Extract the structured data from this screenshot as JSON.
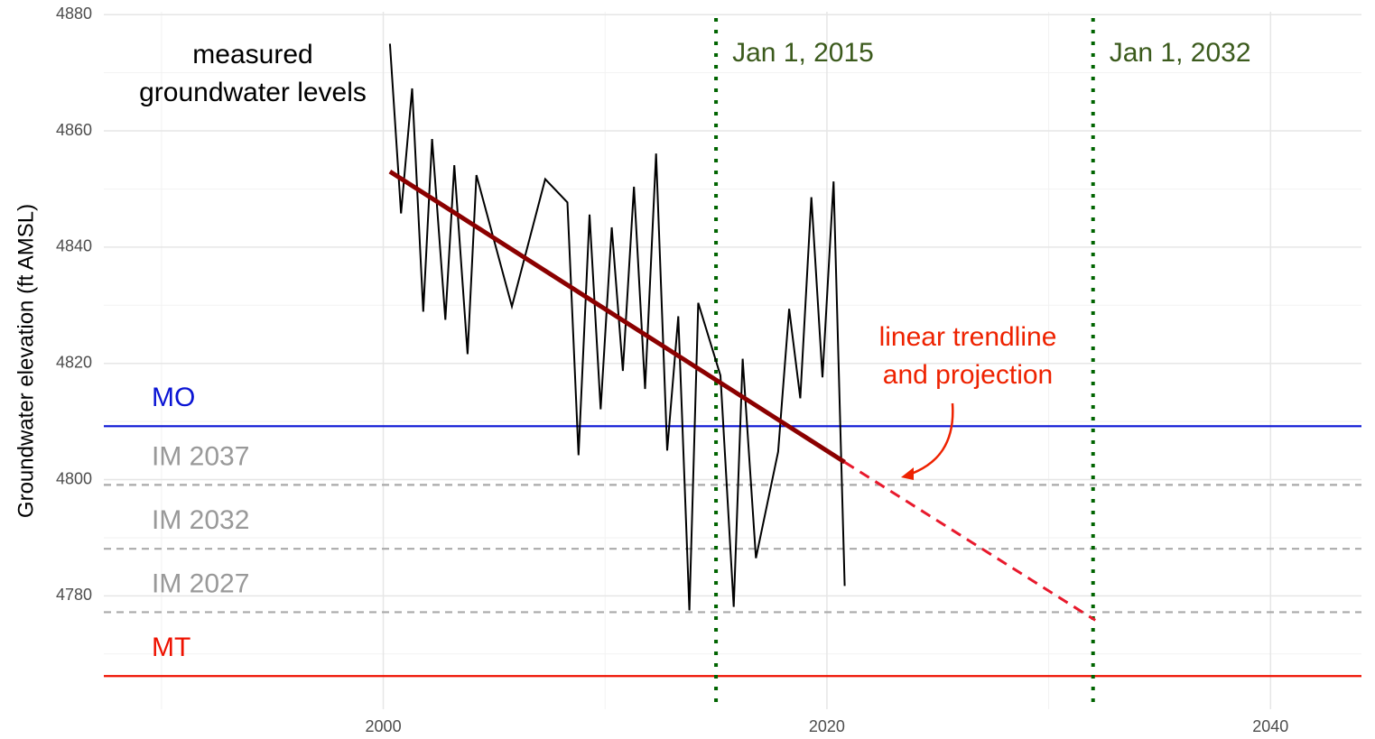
{
  "chart_data": {
    "type": "line",
    "y_label": "Groundwater elevation (ft AMSL)",
    "xlim": [
      1987.4,
      2044.1
    ],
    "ylim": [
      4760.5,
      4880.5
    ],
    "xticks": [
      2000,
      2020,
      2040
    ],
    "xminorticks": [
      1990,
      2010,
      2030
    ],
    "yticks": [
      4780,
      4800,
      4820,
      4840,
      4860,
      4880
    ],
    "yminorticks": [
      4770,
      4790,
      4810,
      4830,
      4850,
      4870
    ],
    "grid": true,
    "series": [
      {
        "color": "#000000",
        "style": "solid",
        "width": 2,
        "x": [
          2000.3,
          2000.8,
          2001.3,
          2001.8,
          2002.2,
          2002.8,
          2003.2,
          2003.8,
          2004.2,
          2005.8,
          2007.3,
          2008.3,
          2008.8,
          2009.3,
          2009.8,
          2010.3,
          2010.8,
          2011.3,
          2011.8,
          2012.3,
          2012.8,
          2013.3,
          2013.8,
          2014.2,
          2015.2,
          2015.8,
          2016.2,
          2016.8,
          2017.8,
          2018.3,
          2018.8,
          2019.3,
          2019.8,
          2020.3,
          2020.8
        ],
        "values": [
          4875.0,
          4845.8,
          4867.3,
          4828.9,
          4858.6,
          4827.5,
          4854.1,
          4821.6,
          4852.4,
          4829.8,
          4851.7,
          4847.7,
          4804.2,
          4845.6,
          4812.1,
          4843.4,
          4818.7,
          4850.4,
          4815.6,
          4856.1,
          4805.0,
          4828.1,
          4777.5,
          4830.4,
          4817.9,
          4778.1,
          4820.8,
          4786.5,
          4804.8,
          4829.4,
          4814.0,
          4848.6,
          4817.6,
          4851.3,
          4781.7
        ]
      },
      {
        "color": "#8b0000",
        "style": "solid",
        "width": 5,
        "x": [
          2000.3,
          2020.8
        ],
        "values": [
          4853.0,
          4803.0
        ]
      },
      {
        "color": "#e8192c",
        "style": "dashed",
        "width": 3,
        "x": [
          2020.8,
          2032.1
        ],
        "values": [
          4803.0,
          4775.8
        ]
      }
    ],
    "hlines": [
      {
        "label": "MO",
        "value": 4809.2,
        "color": "#0a14d4",
        "style": "solid",
        "label_color": "#0a14d4"
      },
      {
        "label": "IM 2037",
        "value": 4799.1,
        "color": "#aaaaaa",
        "style": "dashed",
        "label_color": "#999999"
      },
      {
        "label": "IM 2032",
        "value": 4788.1,
        "color": "#aaaaaa",
        "style": "dashed",
        "label_color": "#999999"
      },
      {
        "label": "IM 2027",
        "value": 4777.2,
        "color": "#aaaaaa",
        "style": "dashed",
        "label_color": "#999999"
      },
      {
        "label": "MT",
        "value": 4766.2,
        "color": "#ee1100",
        "style": "solid",
        "label_color": "#ee1100"
      }
    ],
    "vlines": [
      {
        "label": "Jan 1, 2015",
        "value": 2015,
        "color": "#006400",
        "label_color": "#3b5a1c"
      },
      {
        "label": "Jan 1, 2032",
        "value": 2032,
        "color": "#006400",
        "label_color": "#3b5a1c"
      }
    ],
    "annotations": [
      {
        "lines": [
          "measured",
          "groundwater levels"
        ],
        "color": "#000000"
      },
      {
        "lines": [
          "linear trendline",
          "and projection"
        ],
        "color": "#ee2200"
      }
    ]
  }
}
